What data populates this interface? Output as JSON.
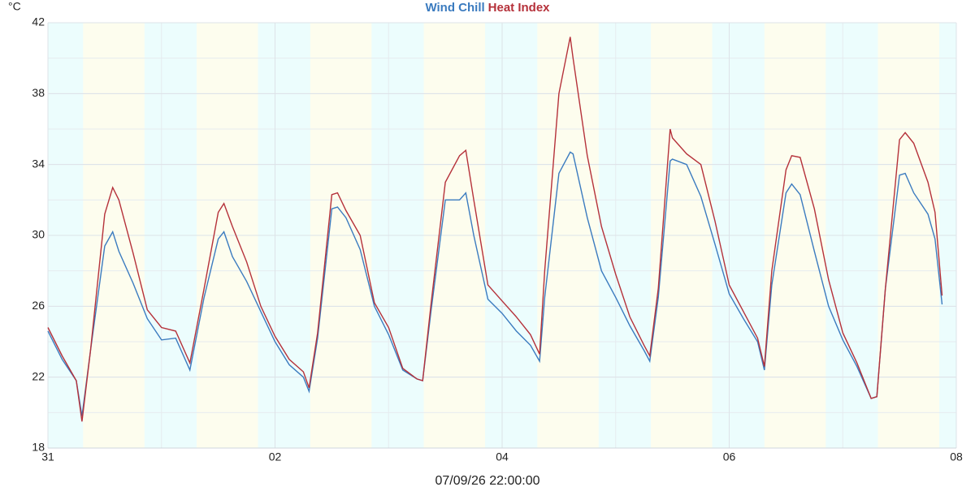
{
  "chart_data": {
    "type": "line",
    "y_label": "°C",
    "footer": "07/09/26 22:00:00",
    "x": [
      0,
      0.125,
      0.25,
      0.3,
      0.375,
      0.5,
      0.57,
      0.625,
      0.75,
      0.875,
      1,
      1.125,
      1.25,
      1.375,
      1.5,
      1.55,
      1.625,
      1.75,
      1.875,
      2,
      2.125,
      2.25,
      2.3,
      2.375,
      2.5,
      2.55,
      2.625,
      2.75,
      2.875,
      3,
      3.125,
      3.25,
      3.3,
      3.375,
      3.5,
      3.625,
      3.68,
      3.75,
      3.875,
      4,
      4.125,
      4.25,
      4.33,
      4.375,
      4.5,
      4.6,
      4.625,
      4.75,
      4.875,
      5,
      5.125,
      5.25,
      5.3,
      5.375,
      5.48,
      5.5,
      5.625,
      5.75,
      5.875,
      6,
      6.125,
      6.25,
      6.31,
      6.375,
      6.5,
      6.55,
      6.625,
      6.75,
      6.875,
      7,
      7.125,
      7.25,
      7.3,
      7.375,
      7.5,
      7.55,
      7.625,
      7.75,
      7.8125,
      7.875
    ],
    "series": [
      {
        "name": "Wind Chill",
        "color": "#3b7bbf",
        "values": [
          24.6,
          23.0,
          21.8,
          19.8,
          23.5,
          29.4,
          30.2,
          29.1,
          27.3,
          25.3,
          24.1,
          24.2,
          22.4,
          26.5,
          29.8,
          30.2,
          28.8,
          27.4,
          25.7,
          24.0,
          22.7,
          22.0,
          21.2,
          24.2,
          31.5,
          31.6,
          31.0,
          29.2,
          26.0,
          24.4,
          22.4,
          21.9,
          21.8,
          25.8,
          32.0,
          32.0,
          32.4,
          30.0,
          26.4,
          25.6,
          24.6,
          23.8,
          22.9,
          26.5,
          33.5,
          34.7,
          34.6,
          31.0,
          28.0,
          26.5,
          24.9,
          23.5,
          22.9,
          26.5,
          34.2,
          34.3,
          34.0,
          32.2,
          29.5,
          26.7,
          25.3,
          24.0,
          22.4,
          27.2,
          32.4,
          32.9,
          32.3,
          29.1,
          26.0,
          24.1,
          22.6,
          20.8,
          20.9,
          27.0,
          33.4,
          33.5,
          32.4,
          31.2,
          29.8,
          26.1
        ]
      },
      {
        "name": "Heat Index",
        "color": "#b5313a",
        "values": [
          24.8,
          23.2,
          21.8,
          19.5,
          23.5,
          31.2,
          32.7,
          32.0,
          29.0,
          25.8,
          24.8,
          24.6,
          22.8,
          27.0,
          31.3,
          31.8,
          30.5,
          28.5,
          26.0,
          24.3,
          23.0,
          22.3,
          21.4,
          24.5,
          32.3,
          32.4,
          31.4,
          30.0,
          26.2,
          24.8,
          22.5,
          21.9,
          21.8,
          26.2,
          33.0,
          34.5,
          34.8,
          32.0,
          27.2,
          26.3,
          25.4,
          24.4,
          23.3,
          28.0,
          38.0,
          41.2,
          40.0,
          34.5,
          30.5,
          27.8,
          25.4,
          23.8,
          23.2,
          27.0,
          36.0,
          35.5,
          34.6,
          34.0,
          30.8,
          27.2,
          25.7,
          24.2,
          22.6,
          28.0,
          33.7,
          34.5,
          34.4,
          31.5,
          27.5,
          24.5,
          22.8,
          20.8,
          20.9,
          27.0,
          35.4,
          35.8,
          35.2,
          33.0,
          31.3,
          26.6
        ]
      }
    ],
    "xlim": [
      0,
      8
    ],
    "xticks": [
      {
        "value": 0,
        "label": "31"
      },
      {
        "value": 2,
        "label": "02"
      },
      {
        "value": 4,
        "label": "04"
      },
      {
        "value": 6,
        "label": "06"
      },
      {
        "value": 8,
        "label": "08"
      }
    ],
    "ylim": [
      18,
      42
    ],
    "yticks": [
      18,
      22,
      26,
      30,
      34,
      38,
      42
    ],
    "grid": true
  }
}
